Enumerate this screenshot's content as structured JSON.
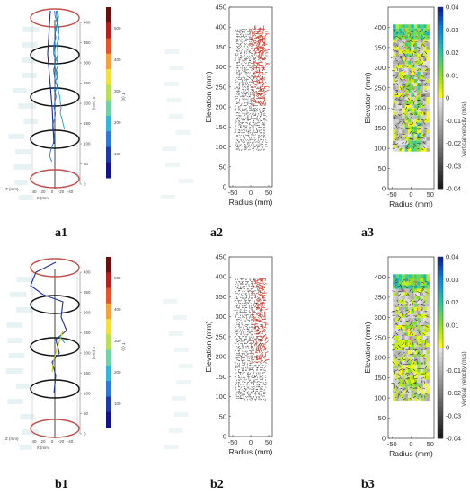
{
  "figure": {
    "panels": [
      {
        "id": "a1",
        "label": "a1",
        "kind": "trajectory",
        "row": 0,
        "col": 0
      },
      {
        "id": "a2",
        "label": "a2",
        "kind": "vector",
        "row": 0,
        "col": 1
      },
      {
        "id": "a3",
        "label": "a3",
        "kind": "velocity",
        "row": 0,
        "col": 2
      },
      {
        "id": "b1",
        "label": "b1",
        "kind": "trajectory",
        "row": 1,
        "col": 0
      },
      {
        "id": "b2",
        "label": "b2",
        "kind": "vector",
        "row": 1,
        "col": 1
      },
      {
        "id": "b3",
        "label": "b3",
        "kind": "velocity",
        "row": 1,
        "col": 2
      }
    ],
    "colors": {
      "ellipse_red": "#c0504d",
      "ellipse_black": "#111111",
      "vector_dark": "#222222",
      "vector_red": "#d43c2a"
    }
  },
  "chart_data": [
    {
      "type": "other",
      "panel": "a1",
      "axes": {
        "y_label": "Y (mm)",
        "z_label": "Z (mm)",
        "x_label": "X (mm)"
      },
      "y_ticks": [
        "400",
        "350",
        "300",
        "250",
        "200",
        "150",
        "100",
        "50",
        "0"
      ],
      "xz_ticks": [
        "40",
        "20",
        "0",
        "-20",
        "-40"
      ],
      "colorbar_ticks": [
        "500",
        "400",
        "300",
        "200",
        "100"
      ],
      "colorbar_label": "T (s)"
    },
    {
      "type": "other",
      "panel": "a2",
      "xlabel": "Radius (mm)",
      "ylabel": "Elevation (mm)",
      "xlim": [
        -60,
        60
      ],
      "ylim": [
        0,
        450
      ],
      "xticks": [
        "-50",
        "0",
        "50"
      ],
      "yticks": [
        "0",
        "50",
        "100",
        "150",
        "200",
        "250",
        "300",
        "350",
        "400",
        "450"
      ]
    },
    {
      "type": "heatmap",
      "panel": "a3",
      "xlabel": "Radius (mm)",
      "ylabel": "Elevation (mm)",
      "xlim": [
        -60,
        60
      ],
      "ylim": [
        0,
        450
      ],
      "xticks": [
        "-50",
        "0",
        "50"
      ],
      "yticks": [
        "0",
        "50",
        "100",
        "150",
        "200",
        "250",
        "300",
        "350",
        "400"
      ],
      "colorbar": {
        "label": "Vertical velocity (m/s)",
        "ticks": [
          "0.04",
          "0.03",
          "0.02",
          "0.01",
          "0",
          "-0.01",
          "-0.02",
          "-0.03",
          "-0.04"
        ],
        "range": [
          -0.04,
          0.04
        ]
      }
    },
    {
      "type": "other",
      "panel": "b1",
      "axes": {
        "y_label": "Y (mm)",
        "z_label": "Z (mm)",
        "x_label": "X (mm)"
      },
      "y_ticks": [
        "400",
        "350",
        "300",
        "250",
        "200",
        "150",
        "100",
        "50",
        "0"
      ],
      "xz_ticks": [
        "40",
        "20",
        "0",
        "-20",
        "-40"
      ],
      "colorbar_ticks": [
        "500",
        "400",
        "300",
        "200",
        "100"
      ],
      "colorbar_label": "T (s)"
    },
    {
      "type": "other",
      "panel": "b2",
      "xlabel": "Radius (mm)",
      "ylabel": "Elevation (mm)",
      "xlim": [
        -60,
        60
      ],
      "ylim": [
        0,
        450
      ],
      "xticks": [
        "-50",
        "0",
        "50"
      ],
      "yticks": [
        "0",
        "50",
        "100",
        "150",
        "200",
        "250",
        "300",
        "350",
        "400",
        "450"
      ]
    },
    {
      "type": "heatmap",
      "panel": "b3",
      "xlabel": "Radius (mm)",
      "ylabel": "Elevation (mm)",
      "xlim": [
        -60,
        60
      ],
      "ylim": [
        0,
        450
      ],
      "xticks": [
        "-50",
        "0",
        "50"
      ],
      "yticks": [
        "0",
        "50",
        "100",
        "150",
        "200",
        "250",
        "300",
        "350",
        "400"
      ],
      "colorbar": {
        "label": "Vertical velocity (m/s)",
        "ticks": [
          "0.04",
          "0.03",
          "0.02",
          "0.01",
          "0",
          "-0.01",
          "-0.02",
          "-0.03",
          "-0.04"
        ],
        "range": [
          -0.04,
          0.04
        ]
      }
    }
  ]
}
